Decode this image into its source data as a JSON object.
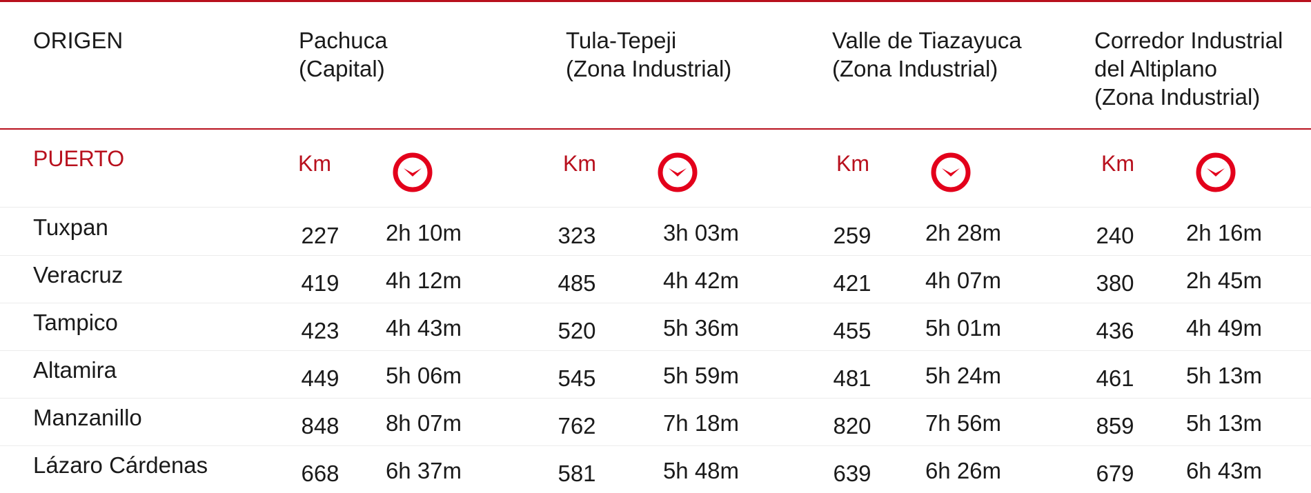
{
  "colors": {
    "accent": "#b8101d",
    "text": "#1a1a1a",
    "row_divider": "#ececec"
  },
  "header": {
    "origin_label": "ORIGEN",
    "destinations": [
      "Pachuca\n(Capital)",
      "Tula-Tepeji\n(Zona Industrial)",
      "Valle de Tiazayuca\n(Zona Industrial)",
      "Corredor Industrial\ndel Altiplano\n(Zona Industrial)"
    ]
  },
  "subheader": {
    "port_label": "PUERTO",
    "km_label": "Km",
    "time_icon": "clock-icon"
  },
  "rows": [
    {
      "origin": "Tuxpan",
      "values": [
        {
          "km": "227",
          "time": "2h 10m"
        },
        {
          "km": "323",
          "time": "3h 03m"
        },
        {
          "km": "259",
          "time": "2h 28m"
        },
        {
          "km": "240",
          "time": "2h 16m"
        }
      ]
    },
    {
      "origin": "Veracruz",
      "values": [
        {
          "km": "419",
          "time": "4h 12m"
        },
        {
          "km": "485",
          "time": "4h 42m"
        },
        {
          "km": "421",
          "time": "4h 07m"
        },
        {
          "km": "380",
          "time": "2h 45m"
        }
      ]
    },
    {
      "origin": "Tampico",
      "values": [
        {
          "km": "423",
          "time": "4h 43m"
        },
        {
          "km": "520",
          "time": "5h 36m"
        },
        {
          "km": "455",
          "time": "5h 01m"
        },
        {
          "km": "436",
          "time": "4h 49m"
        }
      ]
    },
    {
      "origin": "Altamira",
      "values": [
        {
          "km": "449",
          "time": "5h 06m"
        },
        {
          "km": "545",
          "time": "5h 59m"
        },
        {
          "km": "481",
          "time": "5h 24m"
        },
        {
          "km": "461",
          "time": "5h 13m"
        }
      ]
    },
    {
      "origin": "Manzanillo",
      "values": [
        {
          "km": "848",
          "time": "8h 07m"
        },
        {
          "km": "762",
          "time": "7h 18m"
        },
        {
          "km": "820",
          "time": "7h 56m"
        },
        {
          "km": "859",
          "time": "5h 13m"
        }
      ]
    },
    {
      "origin": "Lázaro Cárdenas",
      "values": [
        {
          "km": "668",
          "time": "6h 37m"
        },
        {
          "km": "581",
          "time": "5h 48m"
        },
        {
          "km": "639",
          "time": "6h 26m"
        },
        {
          "km": "679",
          "time": "6h 43m"
        }
      ]
    }
  ]
}
